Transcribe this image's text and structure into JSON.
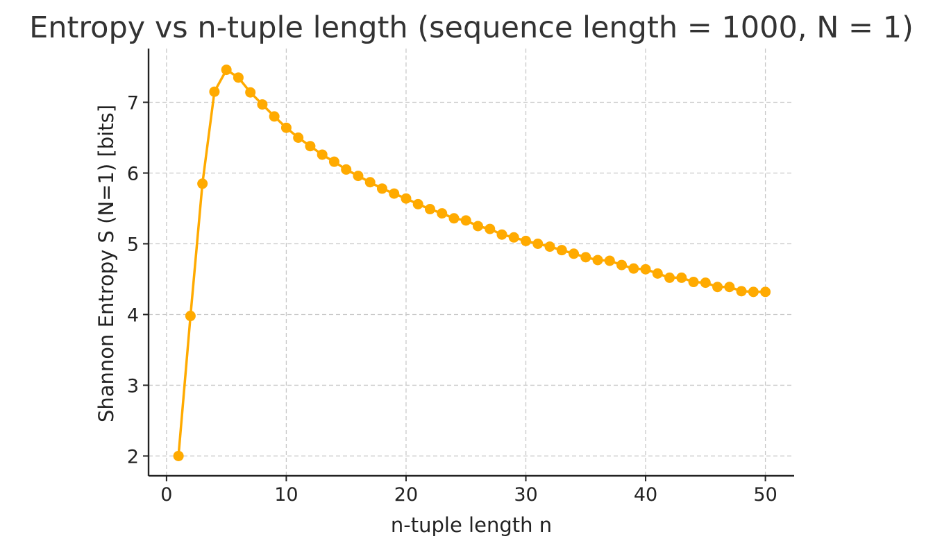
{
  "chart_data": {
    "type": "line",
    "title": "Entropy vs n-tuple length (sequence length = 1000, N = 1)",
    "xlabel": "n-tuple length n",
    "ylabel": "Shannon Entropy S (N=1) [bits]",
    "xlim": [
      -1.5,
      52.4
    ],
    "ylim": [
      1.72,
      7.76
    ],
    "x_ticks": [
      0,
      10,
      20,
      30,
      40,
      50
    ],
    "y_ticks": [
      2,
      3,
      4,
      5,
      6,
      7
    ],
    "grid": true,
    "legend": "none",
    "series_color": "#FFAA00",
    "x": [
      1,
      2,
      3,
      4,
      5,
      6,
      7,
      8,
      9,
      10,
      11,
      12,
      13,
      14,
      15,
      16,
      17,
      18,
      19,
      20,
      21,
      22,
      23,
      24,
      25,
      26,
      27,
      28,
      29,
      30,
      31,
      32,
      33,
      34,
      35,
      36,
      37,
      38,
      39,
      40,
      41,
      42,
      43,
      44,
      45,
      46,
      47,
      48,
      49,
      50
    ],
    "series": [
      {
        "values": [
          2.0,
          3.98,
          5.85,
          7.15,
          7.46,
          7.35,
          7.14,
          6.97,
          6.8,
          6.64,
          6.5,
          6.38,
          6.26,
          6.16,
          6.05,
          5.96,
          5.87,
          5.78,
          5.71,
          5.64,
          5.56,
          5.49,
          5.43,
          5.36,
          5.33,
          5.25,
          5.21,
          5.13,
          5.09,
          5.04,
          5.0,
          4.96,
          4.91,
          4.86,
          4.81,
          4.77,
          4.76,
          4.7,
          4.65,
          4.64,
          4.58,
          4.52,
          4.52,
          4.46,
          4.45,
          4.39,
          4.39,
          4.33,
          4.32,
          4.32
        ]
      }
    ]
  }
}
